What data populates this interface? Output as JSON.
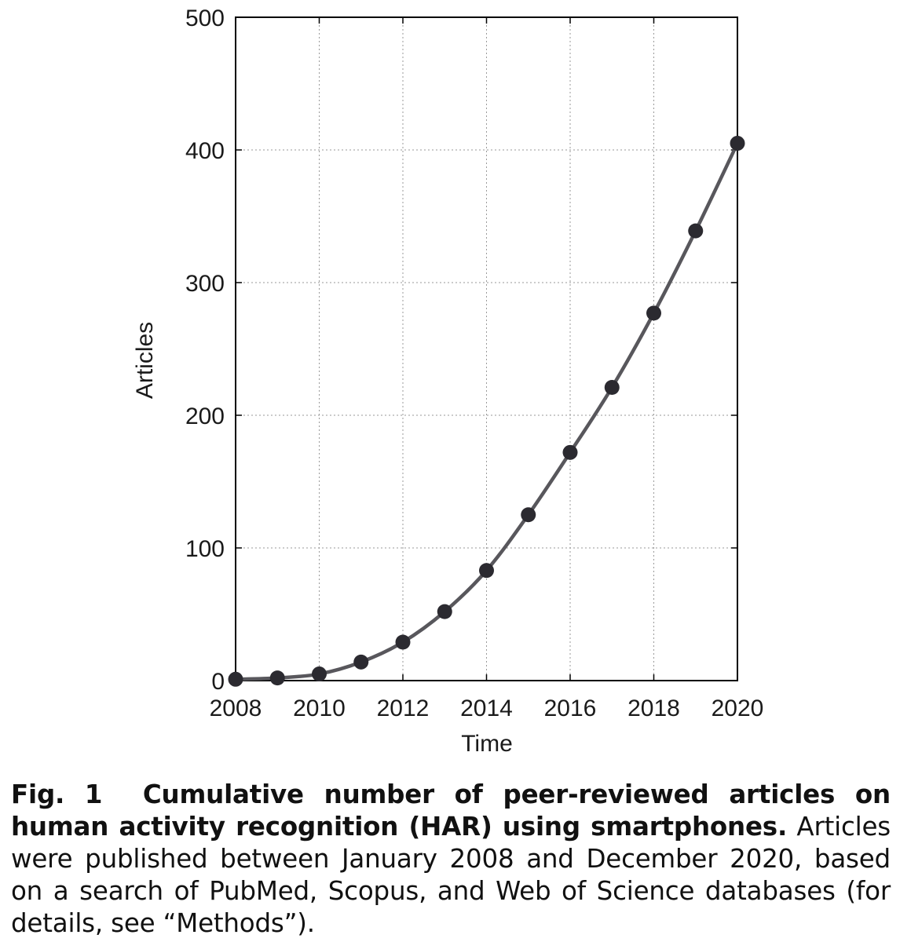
{
  "chart_data": {
    "type": "line",
    "x": [
      2008,
      2009,
      2010,
      2011,
      2012,
      2013,
      2014,
      2015,
      2016,
      2017,
      2018,
      2019,
      2020
    ],
    "series": [
      {
        "values": [
          1,
          2,
          5,
          14,
          29,
          52,
          83,
          125,
          172,
          221,
          277,
          339,
          405
        ]
      }
    ],
    "xlabel": "Time",
    "ylabel": "Articles",
    "xlim": [
      2008,
      2020
    ],
    "ylim": [
      0,
      500
    ],
    "x_ticks": [
      "2008",
      "2010",
      "2012",
      "2014",
      "2016",
      "2018",
      "2020"
    ],
    "y_ticks": [
      "0",
      "100",
      "200",
      "300",
      "400",
      "500"
    ],
    "grid": true,
    "grid_style": "dotted",
    "markers": "filled-circle",
    "line_color": "#58575c",
    "marker_color": "#2b2a30"
  },
  "caption": {
    "label": "Fig. 1",
    "title": "Cumulative number of peer-reviewed articles on human activity recognition (HAR) using smartphones.",
    "body": "Articles were published between January 2008 and December 2020, based on a search of PubMed, Scopus, and Web of Science databases (for details, see “Methods”)."
  }
}
